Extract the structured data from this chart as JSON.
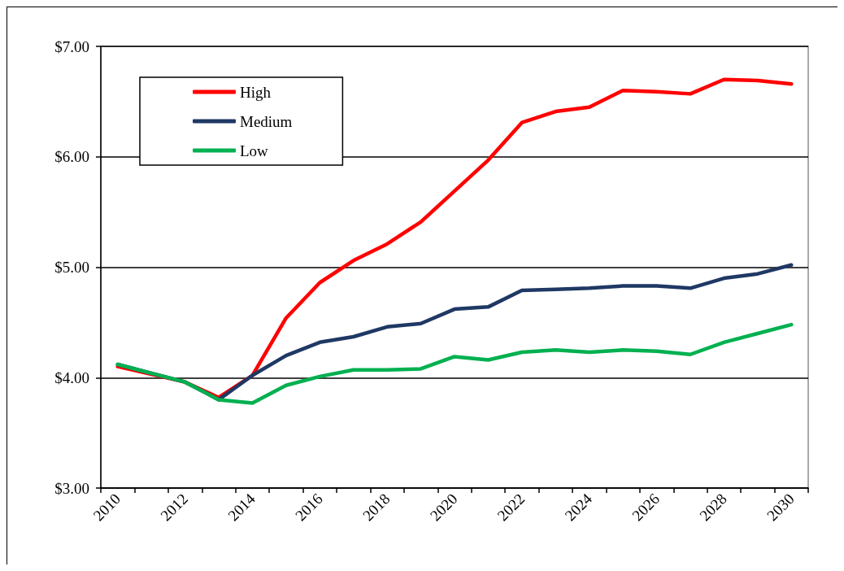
{
  "chart_data": {
    "type": "line",
    "categories": [
      "2010",
      null,
      "2012",
      null,
      "2014",
      null,
      "2016",
      null,
      "2018",
      null,
      "2020",
      null,
      "2022",
      null,
      "2024",
      null,
      "2026",
      null,
      "2028",
      null,
      "2030"
    ],
    "series": [
      {
        "name": "High",
        "color": "#ff0000",
        "values": [
          4.1,
          4.03,
          3.96,
          3.82,
          4.02,
          4.54,
          4.86,
          5.06,
          5.21,
          5.41,
          5.69,
          5.97,
          6.31,
          6.41,
          6.45,
          6.6,
          6.59,
          6.57,
          6.7,
          6.69,
          6.66
        ]
      },
      {
        "name": "Medium",
        "color": "#1f3864",
        "values": [
          4.12,
          4.04,
          3.96,
          3.8,
          4.02,
          4.2,
          4.32,
          4.37,
          4.46,
          4.49,
          4.62,
          4.64,
          4.79,
          4.8,
          4.81,
          4.83,
          4.83,
          4.81,
          4.9,
          4.94,
          5.02
        ]
      },
      {
        "name": "Low",
        "color": "#00b050",
        "values": [
          4.12,
          4.04,
          3.96,
          3.8,
          3.77,
          3.93,
          4.01,
          4.07,
          4.07,
          4.08,
          4.19,
          4.16,
          4.23,
          4.25,
          4.23,
          4.25,
          4.24,
          4.21,
          4.32,
          4.4,
          4.48
        ]
      }
    ],
    "ylim": [
      3,
      7
    ],
    "yticks": [
      {
        "value": 3,
        "label": "$3.00"
      },
      {
        "value": 4,
        "label": "$4.00"
      },
      {
        "value": 5,
        "label": "$5.00"
      },
      {
        "value": 6,
        "label": "$6.00"
      },
      {
        "value": 7,
        "label": "$7.00"
      }
    ],
    "grid": "y",
    "legend": "top left",
    "marker": "none",
    "line_style": "solid"
  }
}
